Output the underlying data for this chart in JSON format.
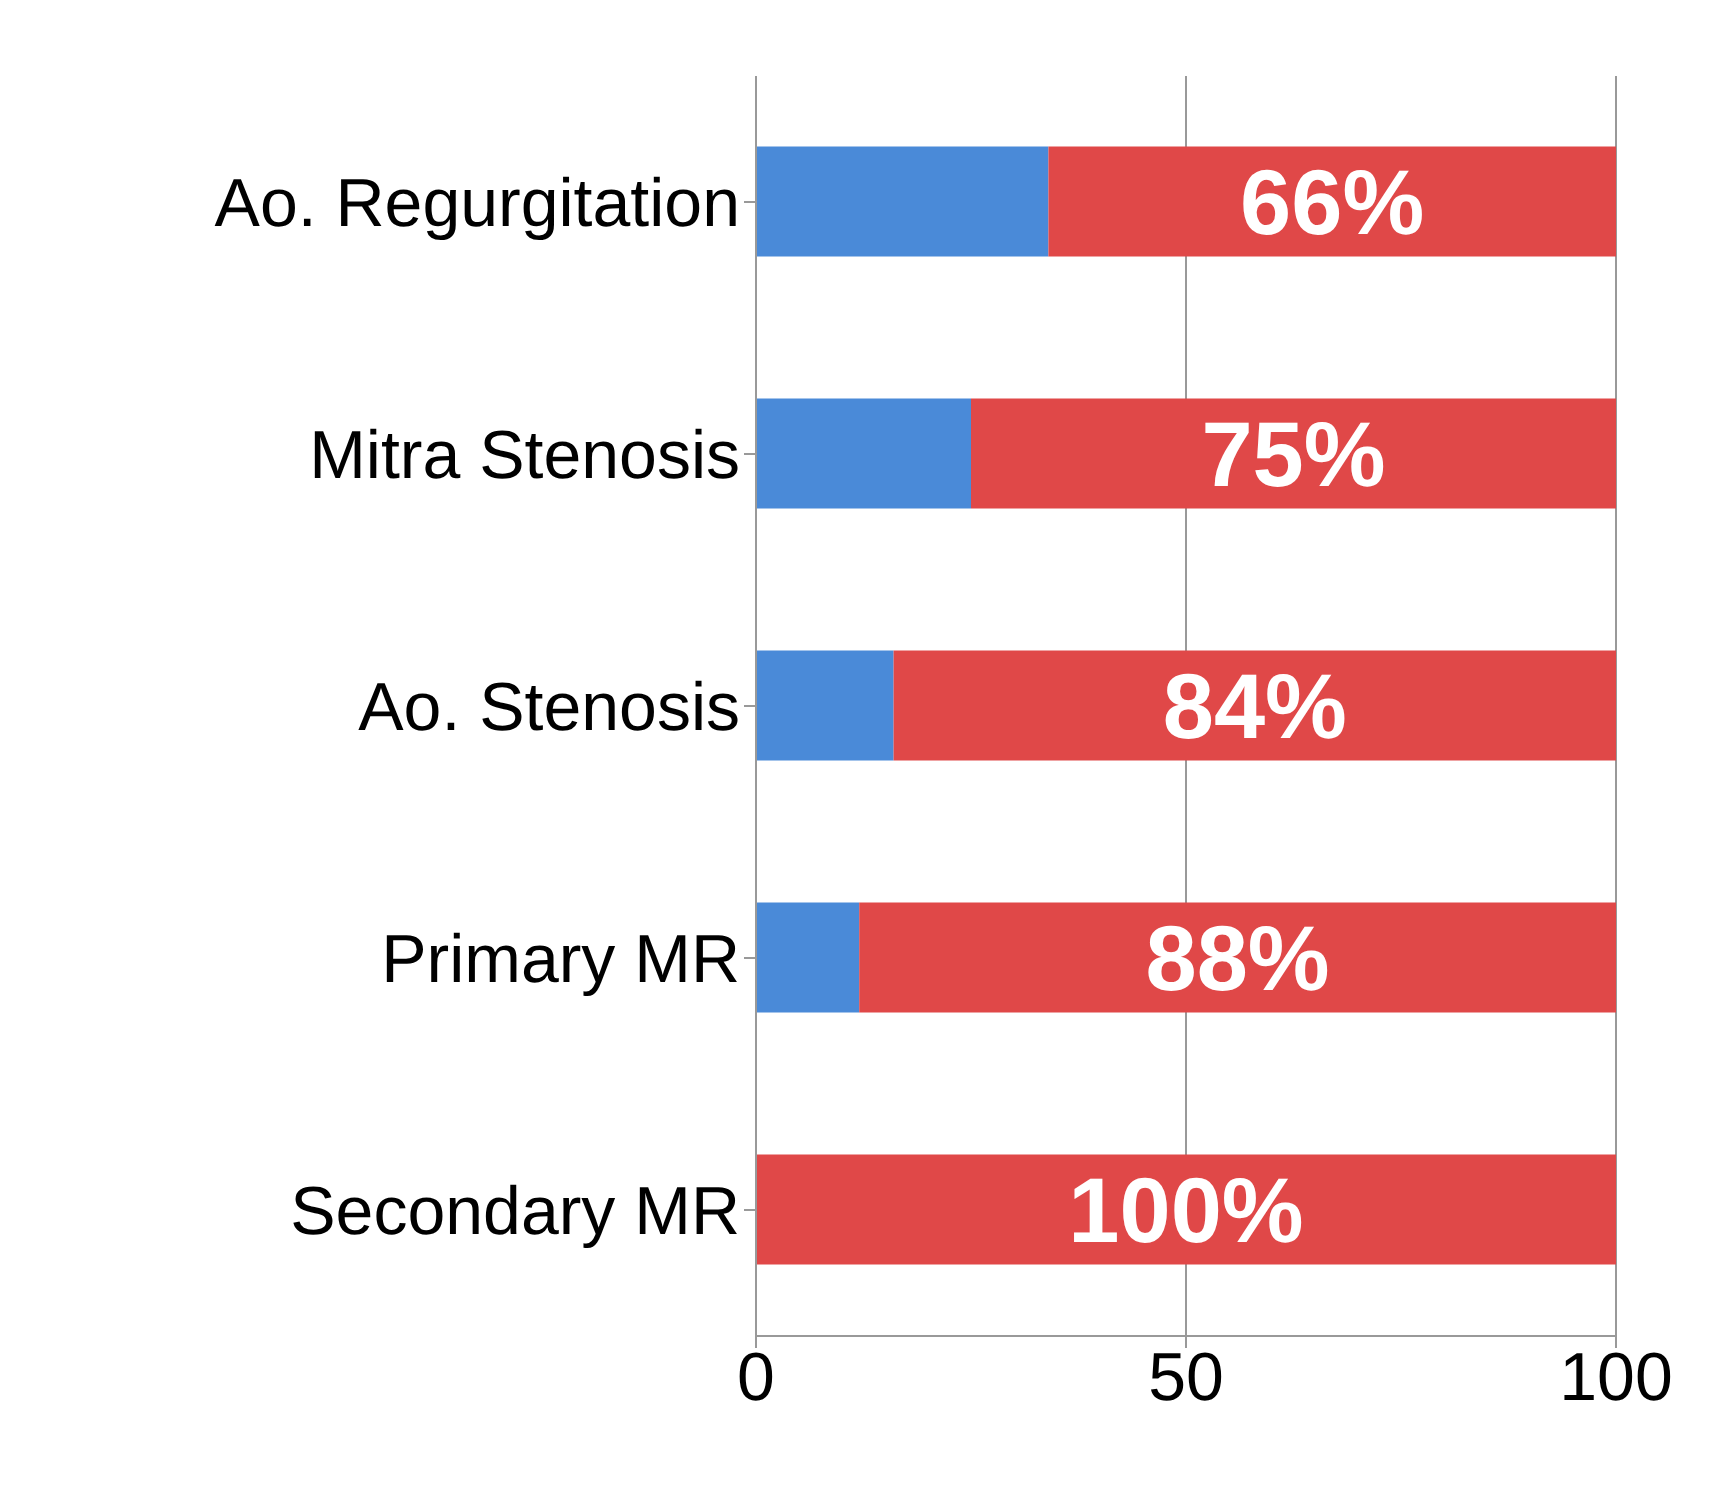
{
  "chart_data": {
    "type": "bar",
    "orientation": "horizontal",
    "stacked": true,
    "categories": [
      "Ao. Regurgitation",
      "Mitra Stenosis",
      "Ao. Stenosis",
      "Primary MR",
      "Secondary MR"
    ],
    "series": [
      {
        "color": "#4a8ad8",
        "values": [
          34,
          25,
          16,
          12,
          0
        ]
      },
      {
        "color": "#e04848",
        "values": [
          66,
          75,
          84,
          88,
          100
        ],
        "value_labels": [
          "66%",
          "75%",
          "84%",
          "88%",
          "100%"
        ]
      }
    ],
    "xlim": [
      0,
      100
    ],
    "xticks": [
      0,
      50,
      100
    ],
    "grid": "x",
    "legend": false
  }
}
